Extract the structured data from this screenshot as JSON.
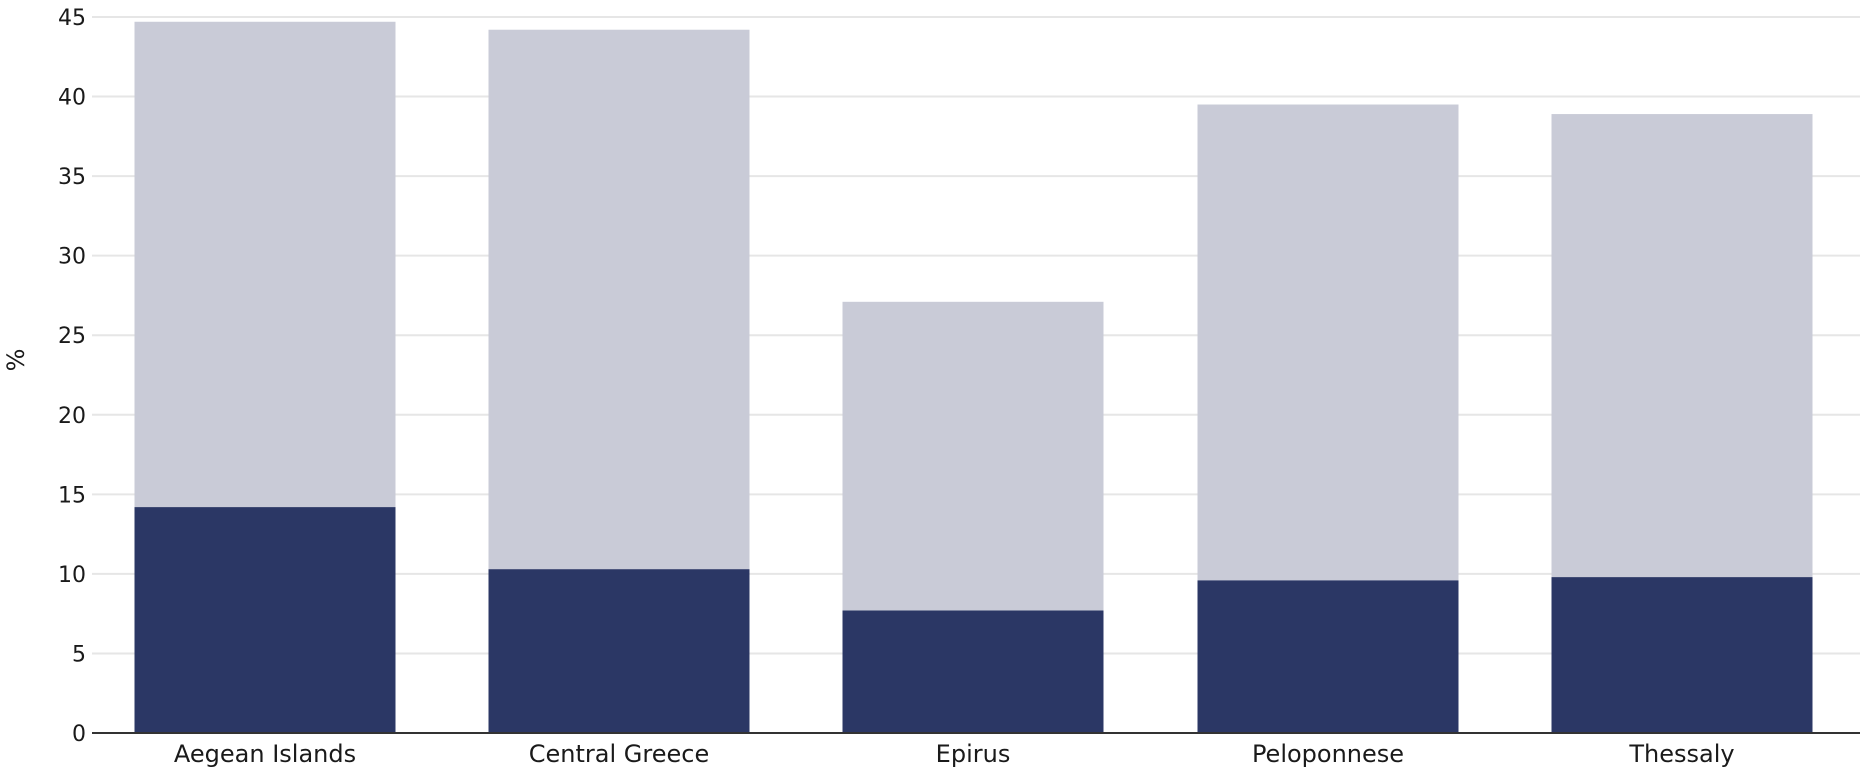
{
  "chart_data": {
    "type": "bar",
    "stacked": true,
    "categories": [
      "Aegean Islands",
      "Central Greece",
      "Epirus",
      "Peloponnese",
      "Thessaly"
    ],
    "series": [
      {
        "values": [
          14.2,
          10.3,
          7.7,
          9.6,
          9.8
        ],
        "color": "#2b3765"
      },
      {
        "values": [
          30.5,
          33.9,
          19.4,
          29.9,
          29.1
        ],
        "color": "#c9cbd7"
      }
    ],
    "xlabel": "",
    "ylabel": "%",
    "ylim": [
      0,
      45
    ],
    "yticks": [
      0,
      5,
      10,
      15,
      20,
      25,
      30,
      35,
      40,
      45
    ],
    "grid": true,
    "colors": {
      "grid": "#e6e6e6",
      "axis": "#333333"
    }
  }
}
